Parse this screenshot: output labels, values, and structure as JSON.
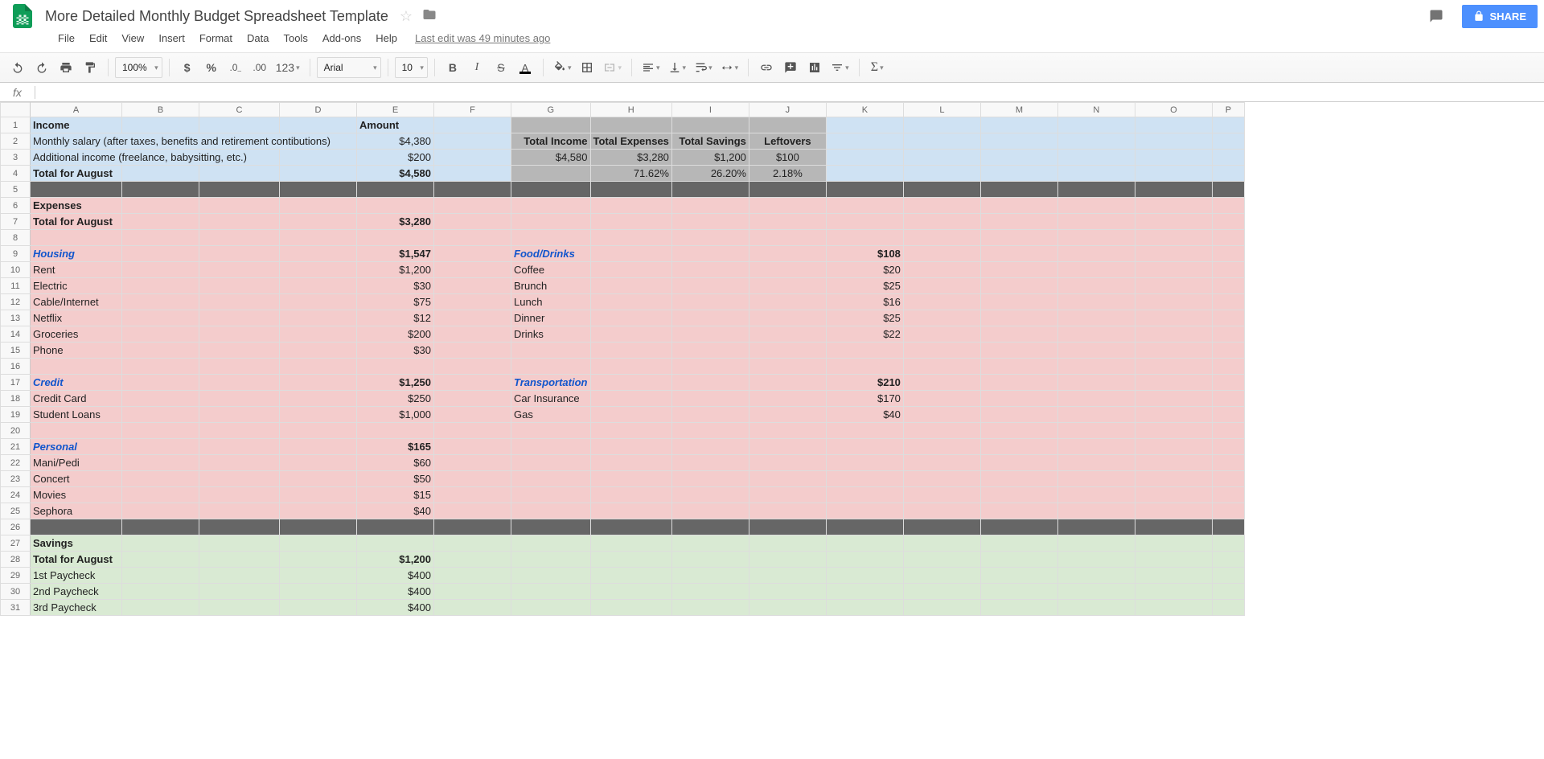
{
  "doc": {
    "title": "More Detailed Monthly Budget Spreadsheet Template",
    "last_edit": "Last edit was 49 minutes ago"
  },
  "menus": [
    "File",
    "Edit",
    "View",
    "Insert",
    "Format",
    "Data",
    "Tools",
    "Add-ons",
    "Help"
  ],
  "share_label": "SHARE",
  "toolbar": {
    "zoom": "100%",
    "font": "Arial",
    "font_size": "10",
    "number_format": "123"
  },
  "columns": [
    "A",
    "B",
    "C",
    "D",
    "E",
    "F",
    "G",
    "H",
    "I",
    "J",
    "K",
    "L",
    "M",
    "N",
    "O",
    "P"
  ],
  "colors": {
    "income_bg": "#cfe2f3",
    "expense_bg": "#f4cccc",
    "savings_bg": "#d9ead3",
    "separator_bg": "#666666",
    "summary_bg": "#b7b7b7"
  },
  "rows": [
    {
      "n": 1,
      "bg": "blue",
      "cells": {
        "0": {
          "t": "Income",
          "cls": "bold"
        },
        "4": {
          "t": "Amount",
          "cls": "bold"
        },
        "6": {
          "bg": "summary"
        },
        "7": {
          "bg": "summary"
        },
        "8": {
          "bg": "summary"
        },
        "9": {
          "bg": "summary"
        }
      }
    },
    {
      "n": 2,
      "bg": "blue",
      "cells": {
        "0": {
          "t": "Monthly salary (after taxes, benefits and retirement contibutions)",
          "span": 4
        },
        "4": {
          "t": "$4,380",
          "cls": "ar"
        },
        "6": {
          "t": "Total Income",
          "cls": "bold ar",
          "bg": "summary"
        },
        "7": {
          "t": "Total Expenses",
          "cls": "bold ar",
          "bg": "summary"
        },
        "8": {
          "t": "Total Savings",
          "cls": "bold ar",
          "bg": "summary"
        },
        "9": {
          "t": "Leftovers",
          "cls": "bold ac",
          "bg": "summary"
        }
      }
    },
    {
      "n": 3,
      "bg": "blue",
      "cells": {
        "0": {
          "t": "Additional income (freelance, babysitting, etc.)",
          "span": 3
        },
        "4": {
          "t": "$200",
          "cls": "ar"
        },
        "6": {
          "t": "$4,580",
          "cls": "ar",
          "bg": "summary"
        },
        "7": {
          "t": "$3,280",
          "cls": "ar",
          "bg": "summary"
        },
        "8": {
          "t": "$1,200",
          "cls": "ar",
          "bg": "summary"
        },
        "9": {
          "t": "$100",
          "cls": "ac",
          "bg": "summary"
        }
      }
    },
    {
      "n": 4,
      "bg": "blue",
      "cells": {
        "0": {
          "t": "Total for August",
          "cls": "bold"
        },
        "4": {
          "t": "$4,580",
          "cls": "bold ar"
        },
        "6": {
          "bg": "summary"
        },
        "7": {
          "t": "71.62%",
          "cls": "ar",
          "bg": "summary"
        },
        "8": {
          "t": "26.20%",
          "cls": "ar",
          "bg": "summary"
        },
        "9": {
          "t": "2.18%",
          "cls": "ac",
          "bg": "summary"
        }
      }
    },
    {
      "n": 5,
      "bg": "gray",
      "cells": {}
    },
    {
      "n": 6,
      "bg": "pink",
      "cells": {
        "0": {
          "t": "Expenses",
          "cls": "bold"
        }
      }
    },
    {
      "n": 7,
      "bg": "pink",
      "cells": {
        "0": {
          "t": "Total for August",
          "cls": "bold"
        },
        "4": {
          "t": "$3,280",
          "cls": "bold ar"
        }
      }
    },
    {
      "n": 8,
      "bg": "pink",
      "cells": {}
    },
    {
      "n": 9,
      "bg": "pink",
      "cells": {
        "0": {
          "t": "Housing",
          "cls": "it"
        },
        "4": {
          "t": "$1,547",
          "cls": "bold ar"
        },
        "6": {
          "t": "Food/Drinks",
          "cls": "it"
        },
        "10": {
          "t": "$108",
          "cls": "bold ar"
        }
      }
    },
    {
      "n": 10,
      "bg": "pink",
      "cells": {
        "0": {
          "t": "Rent"
        },
        "4": {
          "t": "$1,200",
          "cls": "ar"
        },
        "6": {
          "t": "Coffee"
        },
        "10": {
          "t": "$20",
          "cls": "ar"
        }
      }
    },
    {
      "n": 11,
      "bg": "pink",
      "cells": {
        "0": {
          "t": "Electric"
        },
        "4": {
          "t": "$30",
          "cls": "ar"
        },
        "6": {
          "t": "Brunch"
        },
        "10": {
          "t": "$25",
          "cls": "ar"
        }
      }
    },
    {
      "n": 12,
      "bg": "pink",
      "cells": {
        "0": {
          "t": "Cable/Internet"
        },
        "4": {
          "t": "$75",
          "cls": "ar"
        },
        "6": {
          "t": "Lunch"
        },
        "10": {
          "t": "$16",
          "cls": "ar"
        }
      }
    },
    {
      "n": 13,
      "bg": "pink",
      "cells": {
        "0": {
          "t": "Netflix"
        },
        "4": {
          "t": "$12",
          "cls": "ar"
        },
        "6": {
          "t": "Dinner"
        },
        "10": {
          "t": "$25",
          "cls": "ar"
        }
      }
    },
    {
      "n": 14,
      "bg": "pink",
      "cells": {
        "0": {
          "t": "Groceries"
        },
        "4": {
          "t": "$200",
          "cls": "ar"
        },
        "6": {
          "t": "Drinks"
        },
        "10": {
          "t": "$22",
          "cls": "ar"
        }
      }
    },
    {
      "n": 15,
      "bg": "pink",
      "cells": {
        "0": {
          "t": "Phone"
        },
        "4": {
          "t": "$30",
          "cls": "ar"
        }
      }
    },
    {
      "n": 16,
      "bg": "pink",
      "cells": {}
    },
    {
      "n": 17,
      "bg": "pink",
      "cells": {
        "0": {
          "t": "Credit",
          "cls": "it"
        },
        "4": {
          "t": "$1,250",
          "cls": "bold ar"
        },
        "6": {
          "t": "Transportation",
          "cls": "it"
        },
        "10": {
          "t": "$210",
          "cls": "bold ar"
        }
      }
    },
    {
      "n": 18,
      "bg": "pink",
      "cells": {
        "0": {
          "t": "Credit Card"
        },
        "4": {
          "t": "$250",
          "cls": "ar"
        },
        "6": {
          "t": "Car Insurance"
        },
        "10": {
          "t": "$170",
          "cls": "ar"
        }
      }
    },
    {
      "n": 19,
      "bg": "pink",
      "cells": {
        "0": {
          "t": "Student Loans"
        },
        "4": {
          "t": "$1,000",
          "cls": "ar"
        },
        "6": {
          "t": "Gas"
        },
        "10": {
          "t": "$40",
          "cls": "ar"
        }
      }
    },
    {
      "n": 20,
      "bg": "pink",
      "cells": {}
    },
    {
      "n": 21,
      "bg": "pink",
      "cells": {
        "0": {
          "t": "Personal",
          "cls": "it"
        },
        "4": {
          "t": "$165",
          "cls": "bold ar"
        }
      }
    },
    {
      "n": 22,
      "bg": "pink",
      "cells": {
        "0": {
          "t": "Mani/Pedi"
        },
        "4": {
          "t": "$60",
          "cls": "ar"
        }
      }
    },
    {
      "n": 23,
      "bg": "pink",
      "cells": {
        "0": {
          "t": "Concert"
        },
        "4": {
          "t": "$50",
          "cls": "ar"
        }
      }
    },
    {
      "n": 24,
      "bg": "pink",
      "cells": {
        "0": {
          "t": "Movies"
        },
        "4": {
          "t": "$15",
          "cls": "ar"
        }
      }
    },
    {
      "n": 25,
      "bg": "pink",
      "cells": {
        "0": {
          "t": "Sephora"
        },
        "4": {
          "t": "$40",
          "cls": "ar"
        }
      }
    },
    {
      "n": 26,
      "bg": "gray",
      "cells": {}
    },
    {
      "n": 27,
      "bg": "green",
      "cells": {
        "0": {
          "t": "Savings",
          "cls": "bold"
        }
      }
    },
    {
      "n": 28,
      "bg": "green",
      "cells": {
        "0": {
          "t": "Total for August",
          "cls": "bold"
        },
        "4": {
          "t": "$1,200",
          "cls": "bold ar"
        }
      }
    },
    {
      "n": 29,
      "bg": "green",
      "cells": {
        "0": {
          "t": "1st Paycheck"
        },
        "4": {
          "t": "$400",
          "cls": "ar"
        }
      }
    },
    {
      "n": 30,
      "bg": "green",
      "cells": {
        "0": {
          "t": "2nd Paycheck"
        },
        "4": {
          "t": "$400",
          "cls": "ar"
        }
      }
    },
    {
      "n": 31,
      "bg": "green",
      "cells": {
        "0": {
          "t": "3rd Paycheck"
        },
        "4": {
          "t": "$400",
          "cls": "ar"
        }
      }
    }
  ]
}
